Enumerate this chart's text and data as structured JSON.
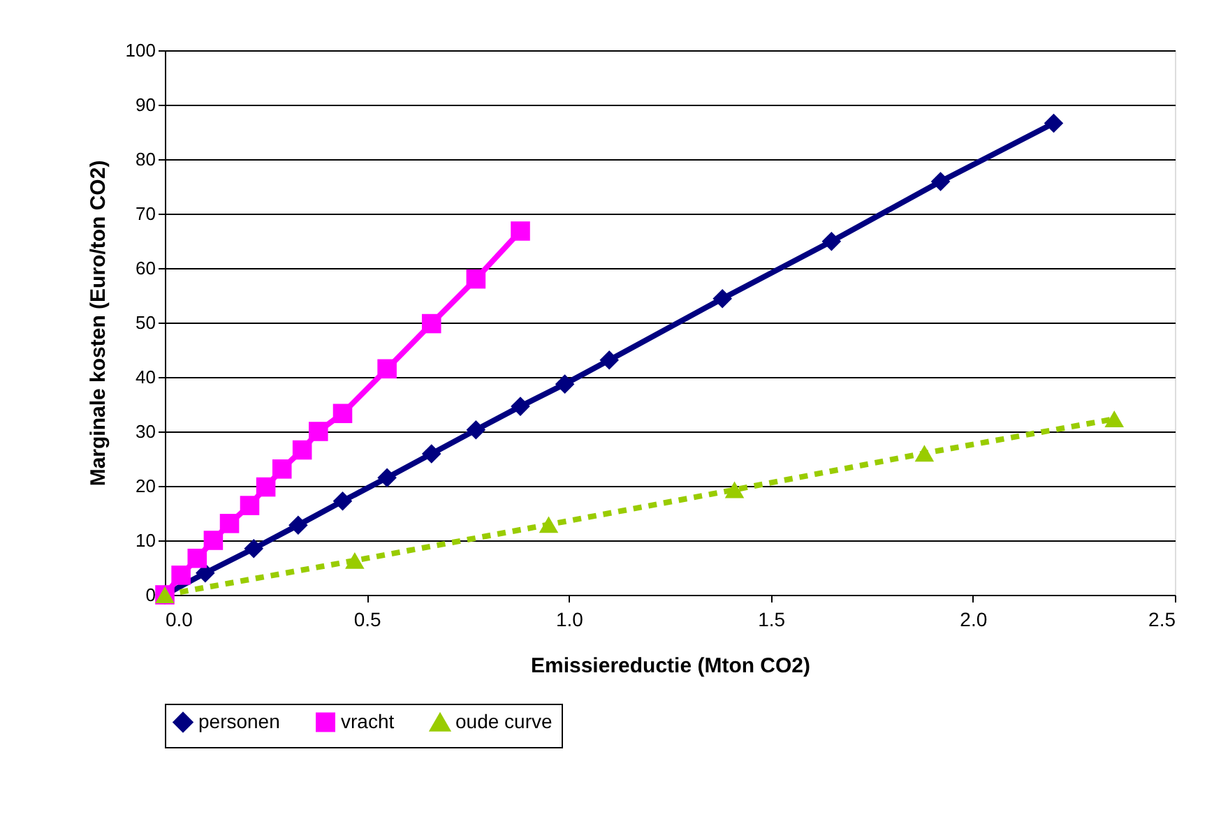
{
  "chart_data": {
    "type": "line",
    "xlabel": "Emissiereductie (Mton CO2)",
    "ylabel": "Marginale kosten (Euro/ton CO2)",
    "xlim": [
      0,
      2.5
    ],
    "ylim": [
      0,
      100
    ],
    "xticks": [
      {
        "value": 0,
        "label": "0.0"
      },
      {
        "value": 0.5,
        "label": "0.5"
      },
      {
        "value": 1,
        "label": "1.0"
      },
      {
        "value": 1.5,
        "label": "1.5"
      },
      {
        "value": 2,
        "label": "2.0"
      },
      {
        "value": 2.5,
        "label": "2.5"
      }
    ],
    "yticks": [
      0,
      10,
      20,
      30,
      40,
      50,
      60,
      70,
      80,
      90,
      100
    ],
    "grid": "y",
    "legend": "bottom",
    "series": [
      {
        "name": "personen",
        "color": "#000080",
        "marker": "diamond",
        "line_style": "solid",
        "x": [
          0,
          0.1,
          0.22,
          0.33,
          0.44,
          0.55,
          0.66,
          0.77,
          0.88,
          0.99,
          1.1,
          1.38,
          1.65,
          1.92,
          2.2
        ],
        "values": [
          0,
          4,
          8.5,
          12.8,
          17.2,
          21.5,
          25.9,
          30.3,
          34.6,
          38.7,
          43.1,
          54.4,
          64.9,
          75.9,
          86.6
        ]
      },
      {
        "name": "vracht",
        "color": "#ff00ff",
        "marker": "square",
        "line_style": "solid",
        "x": [
          0,
          0.04,
          0.08,
          0.12,
          0.16,
          0.21,
          0.25,
          0.29,
          0.34,
          0.38,
          0.44,
          0.55,
          0.66,
          0.77,
          0.88
        ],
        "values": [
          0,
          3.6,
          6.7,
          10,
          13.1,
          16.4,
          19.8,
          23.1,
          26.6,
          30,
          33.3,
          41.5,
          49.8,
          58,
          66.8
        ]
      },
      {
        "name": "oude curve",
        "color": "#99cc00",
        "marker": "triangle",
        "line_style": "dashed",
        "x": [
          0,
          0.47,
          0.95,
          1.41,
          1.88,
          2.35
        ],
        "values": [
          0,
          6.3,
          12.9,
          19.3,
          26,
          32.3
        ]
      }
    ]
  }
}
